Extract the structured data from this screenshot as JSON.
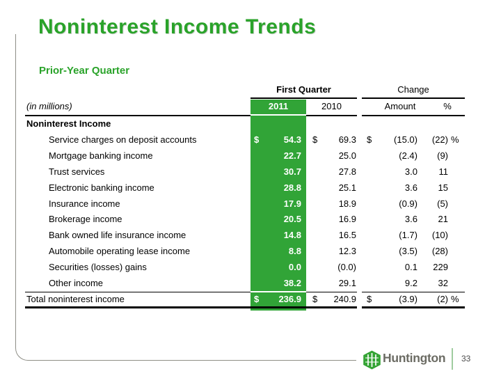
{
  "slide": {
    "title": "Noninterest Income Trends",
    "subtitle": "Prior-Year Quarter",
    "page_number": "33",
    "logo_text": "Huntington",
    "colors": {
      "accent_green": "#2aa32a",
      "column_green": "#31a437",
      "frame_gray": "#8d8d85",
      "logo_gray": "#6b6b63",
      "separator_green": "#9fcc9f"
    }
  },
  "table": {
    "unit_label": "(in millions)",
    "col_group_first_quarter": "First Quarter",
    "col_group_change": "Change",
    "col_2011": "2011",
    "col_2010": "2010",
    "col_amount": "Amount",
    "col_pct": "%",
    "rows": [
      {
        "label": "Noninterest Income",
        "indent": false,
        "bold": true,
        "d2011": "",
        "v2011": "",
        "d2010": "",
        "v2010": "",
        "damt": "",
        "amt": "",
        "pct": "",
        "pctsign": ""
      },
      {
        "label": "Service charges on deposit accounts",
        "indent": true,
        "bold": false,
        "d2011": "$",
        "v2011": "54.3",
        "d2010": "$",
        "v2010": "69.3",
        "damt": "$",
        "amt": "(15.0)",
        "pct": "(22)",
        "pctsign": "%"
      },
      {
        "label": "Mortgage banking income",
        "indent": true,
        "bold": false,
        "d2011": "",
        "v2011": "22.7",
        "d2010": "",
        "v2010": "25.0",
        "damt": "",
        "amt": "(2.4)",
        "pct": "(9)",
        "pctsign": ""
      },
      {
        "label": "Trust services",
        "indent": true,
        "bold": false,
        "d2011": "",
        "v2011": "30.7",
        "d2010": "",
        "v2010": "27.8",
        "damt": "",
        "amt": "3.0",
        "pct": "11",
        "pctsign": ""
      },
      {
        "label": "Electronic banking income",
        "indent": true,
        "bold": false,
        "d2011": "",
        "v2011": "28.8",
        "d2010": "",
        "v2010": "25.1",
        "damt": "",
        "amt": "3.6",
        "pct": "15",
        "pctsign": ""
      },
      {
        "label": "Insurance income",
        "indent": true,
        "bold": false,
        "d2011": "",
        "v2011": "17.9",
        "d2010": "",
        "v2010": "18.9",
        "damt": "",
        "amt": "(0.9)",
        "pct": "(5)",
        "pctsign": ""
      },
      {
        "label": "Brokerage income",
        "indent": true,
        "bold": false,
        "d2011": "",
        "v2011": "20.5",
        "d2010": "",
        "v2010": "16.9",
        "damt": "",
        "amt": "3.6",
        "pct": "21",
        "pctsign": ""
      },
      {
        "label": "Bank owned life insurance income",
        "indent": true,
        "bold": false,
        "d2011": "",
        "v2011": "14.8",
        "d2010": "",
        "v2010": "16.5",
        "damt": "",
        "amt": "(1.7)",
        "pct": "(10)",
        "pctsign": ""
      },
      {
        "label": "Automobile operating lease income",
        "indent": true,
        "bold": false,
        "d2011": "",
        "v2011": "8.8",
        "d2010": "",
        "v2010": "12.3",
        "damt": "",
        "amt": "(3.5)",
        "pct": "(28)",
        "pctsign": ""
      },
      {
        "label": "Securities (losses) gains",
        "indent": true,
        "bold": false,
        "d2011": "",
        "v2011": "0.0",
        "d2010": "",
        "v2010": "(0.0)",
        "damt": "",
        "amt": "0.1",
        "pct": "229",
        "pctsign": ""
      },
      {
        "label": "Other income",
        "indent": true,
        "bold": false,
        "d2011": "",
        "v2011": "38.2",
        "d2010": "",
        "v2010": "29.1",
        "damt": "",
        "amt": "9.2",
        "pct": "32",
        "pctsign": ""
      },
      {
        "label": "Total noninterest income",
        "indent": false,
        "bold": false,
        "d2011": "$",
        "v2011": "236.9",
        "d2010": "$",
        "v2010": "240.9",
        "damt": "$",
        "amt": "(3.9)",
        "pct": "(2)",
        "pctsign": "%"
      }
    ]
  }
}
